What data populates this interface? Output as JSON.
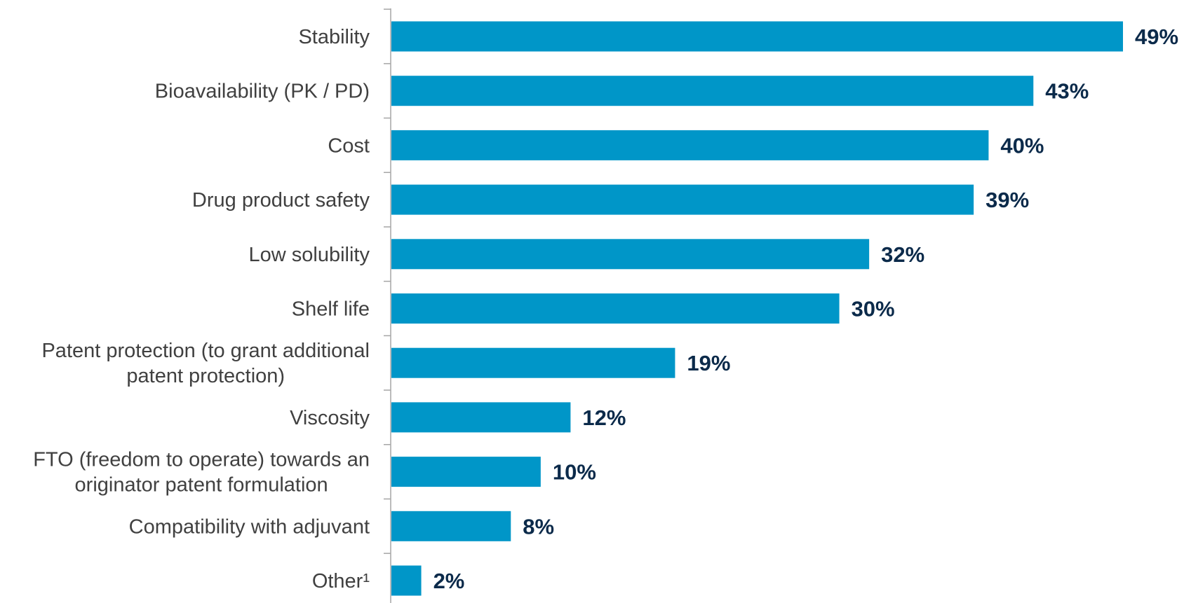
{
  "chart_data": {
    "type": "bar",
    "orientation": "horizontal",
    "title": "",
    "xlabel": "",
    "ylabel": "",
    "categories": [
      [
        "Stability"
      ],
      [
        "Bioavailability (PK / PD)"
      ],
      [
        "Cost"
      ],
      [
        "Drug product safety"
      ],
      [
        "Low solubility"
      ],
      [
        "Shelf life"
      ],
      [
        "Patent protection (to grant additional",
        "patent protection)"
      ],
      [
        "Viscosity"
      ],
      [
        "FTO (freedom to operate) towards an",
        "originator patent formulation"
      ],
      [
        "Compatibility with adjuvant"
      ],
      [
        "Other¹"
      ]
    ],
    "values": [
      49,
      43,
      40,
      39,
      32,
      30,
      19,
      12,
      10,
      8,
      2
    ],
    "value_labels": [
      "49%",
      "43%",
      "40%",
      "39%",
      "32%",
      "30%",
      "19%",
      "12%",
      "10%",
      "8%",
      "2%"
    ],
    "unit": "%",
    "xlim": [
      0,
      49
    ],
    "grid": false,
    "legend": "none",
    "colors": {
      "bar": "#0096c8",
      "value_label": "#0b2a4a",
      "category_label": "#404040",
      "axis": "#a6a6a6"
    }
  }
}
